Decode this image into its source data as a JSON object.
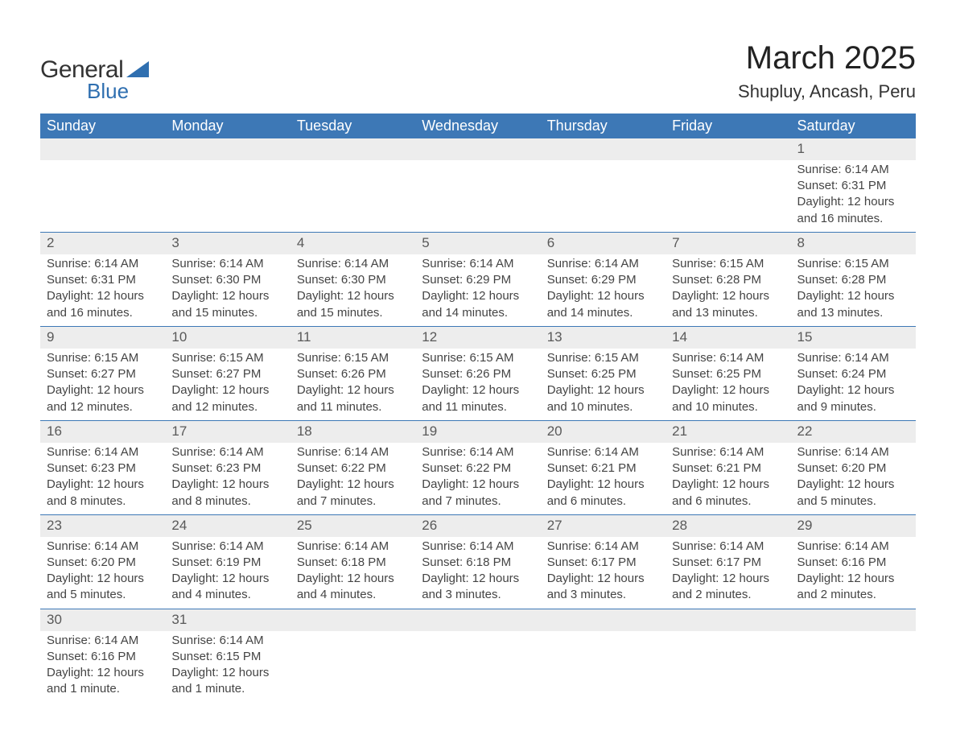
{
  "logo": {
    "text1": "General",
    "text2": "Blue",
    "shape_color": "#2f6fb0"
  },
  "title": "March 2025",
  "location": "Shupluy, Ancash, Peru",
  "colors": {
    "header_bg": "#3d78b6",
    "header_text": "#ffffff",
    "daynum_bg": "#ededed",
    "daynum_text": "#595959",
    "body_text": "#444444",
    "row_divider": "#3d78b6"
  },
  "fonts": {
    "title_size_pt": 30,
    "location_size_pt": 17,
    "header_size_pt": 14,
    "daynum_size_pt": 13,
    "body_size_pt": 11
  },
  "weekdays": [
    "Sunday",
    "Monday",
    "Tuesday",
    "Wednesday",
    "Thursday",
    "Friday",
    "Saturday"
  ],
  "weeks": [
    [
      null,
      null,
      null,
      null,
      null,
      null,
      {
        "n": "1",
        "sr": "Sunrise: 6:14 AM",
        "ss": "Sunset: 6:31 PM",
        "dl": "Daylight: 12 hours and 16 minutes."
      }
    ],
    [
      {
        "n": "2",
        "sr": "Sunrise: 6:14 AM",
        "ss": "Sunset: 6:31 PM",
        "dl": "Daylight: 12 hours and 16 minutes."
      },
      {
        "n": "3",
        "sr": "Sunrise: 6:14 AM",
        "ss": "Sunset: 6:30 PM",
        "dl": "Daylight: 12 hours and 15 minutes."
      },
      {
        "n": "4",
        "sr": "Sunrise: 6:14 AM",
        "ss": "Sunset: 6:30 PM",
        "dl": "Daylight: 12 hours and 15 minutes."
      },
      {
        "n": "5",
        "sr": "Sunrise: 6:14 AM",
        "ss": "Sunset: 6:29 PM",
        "dl": "Daylight: 12 hours and 14 minutes."
      },
      {
        "n": "6",
        "sr": "Sunrise: 6:14 AM",
        "ss": "Sunset: 6:29 PM",
        "dl": "Daylight: 12 hours and 14 minutes."
      },
      {
        "n": "7",
        "sr": "Sunrise: 6:15 AM",
        "ss": "Sunset: 6:28 PM",
        "dl": "Daylight: 12 hours and 13 minutes."
      },
      {
        "n": "8",
        "sr": "Sunrise: 6:15 AM",
        "ss": "Sunset: 6:28 PM",
        "dl": "Daylight: 12 hours and 13 minutes."
      }
    ],
    [
      {
        "n": "9",
        "sr": "Sunrise: 6:15 AM",
        "ss": "Sunset: 6:27 PM",
        "dl": "Daylight: 12 hours and 12 minutes."
      },
      {
        "n": "10",
        "sr": "Sunrise: 6:15 AM",
        "ss": "Sunset: 6:27 PM",
        "dl": "Daylight: 12 hours and 12 minutes."
      },
      {
        "n": "11",
        "sr": "Sunrise: 6:15 AM",
        "ss": "Sunset: 6:26 PM",
        "dl": "Daylight: 12 hours and 11 minutes."
      },
      {
        "n": "12",
        "sr": "Sunrise: 6:15 AM",
        "ss": "Sunset: 6:26 PM",
        "dl": "Daylight: 12 hours and 11 minutes."
      },
      {
        "n": "13",
        "sr": "Sunrise: 6:15 AM",
        "ss": "Sunset: 6:25 PM",
        "dl": "Daylight: 12 hours and 10 minutes."
      },
      {
        "n": "14",
        "sr": "Sunrise: 6:14 AM",
        "ss": "Sunset: 6:25 PM",
        "dl": "Daylight: 12 hours and 10 minutes."
      },
      {
        "n": "15",
        "sr": "Sunrise: 6:14 AM",
        "ss": "Sunset: 6:24 PM",
        "dl": "Daylight: 12 hours and 9 minutes."
      }
    ],
    [
      {
        "n": "16",
        "sr": "Sunrise: 6:14 AM",
        "ss": "Sunset: 6:23 PM",
        "dl": "Daylight: 12 hours and 8 minutes."
      },
      {
        "n": "17",
        "sr": "Sunrise: 6:14 AM",
        "ss": "Sunset: 6:23 PM",
        "dl": "Daylight: 12 hours and 8 minutes."
      },
      {
        "n": "18",
        "sr": "Sunrise: 6:14 AM",
        "ss": "Sunset: 6:22 PM",
        "dl": "Daylight: 12 hours and 7 minutes."
      },
      {
        "n": "19",
        "sr": "Sunrise: 6:14 AM",
        "ss": "Sunset: 6:22 PM",
        "dl": "Daylight: 12 hours and 7 minutes."
      },
      {
        "n": "20",
        "sr": "Sunrise: 6:14 AM",
        "ss": "Sunset: 6:21 PM",
        "dl": "Daylight: 12 hours and 6 minutes."
      },
      {
        "n": "21",
        "sr": "Sunrise: 6:14 AM",
        "ss": "Sunset: 6:21 PM",
        "dl": "Daylight: 12 hours and 6 minutes."
      },
      {
        "n": "22",
        "sr": "Sunrise: 6:14 AM",
        "ss": "Sunset: 6:20 PM",
        "dl": "Daylight: 12 hours and 5 minutes."
      }
    ],
    [
      {
        "n": "23",
        "sr": "Sunrise: 6:14 AM",
        "ss": "Sunset: 6:20 PM",
        "dl": "Daylight: 12 hours and 5 minutes."
      },
      {
        "n": "24",
        "sr": "Sunrise: 6:14 AM",
        "ss": "Sunset: 6:19 PM",
        "dl": "Daylight: 12 hours and 4 minutes."
      },
      {
        "n": "25",
        "sr": "Sunrise: 6:14 AM",
        "ss": "Sunset: 6:18 PM",
        "dl": "Daylight: 12 hours and 4 minutes."
      },
      {
        "n": "26",
        "sr": "Sunrise: 6:14 AM",
        "ss": "Sunset: 6:18 PM",
        "dl": "Daylight: 12 hours and 3 minutes."
      },
      {
        "n": "27",
        "sr": "Sunrise: 6:14 AM",
        "ss": "Sunset: 6:17 PM",
        "dl": "Daylight: 12 hours and 3 minutes."
      },
      {
        "n": "28",
        "sr": "Sunrise: 6:14 AM",
        "ss": "Sunset: 6:17 PM",
        "dl": "Daylight: 12 hours and 2 minutes."
      },
      {
        "n": "29",
        "sr": "Sunrise: 6:14 AM",
        "ss": "Sunset: 6:16 PM",
        "dl": "Daylight: 12 hours and 2 minutes."
      }
    ],
    [
      {
        "n": "30",
        "sr": "Sunrise: 6:14 AM",
        "ss": "Sunset: 6:16 PM",
        "dl": "Daylight: 12 hours and 1 minute."
      },
      {
        "n": "31",
        "sr": "Sunrise: 6:14 AM",
        "ss": "Sunset: 6:15 PM",
        "dl": "Daylight: 12 hours and 1 minute."
      },
      null,
      null,
      null,
      null,
      null
    ]
  ]
}
